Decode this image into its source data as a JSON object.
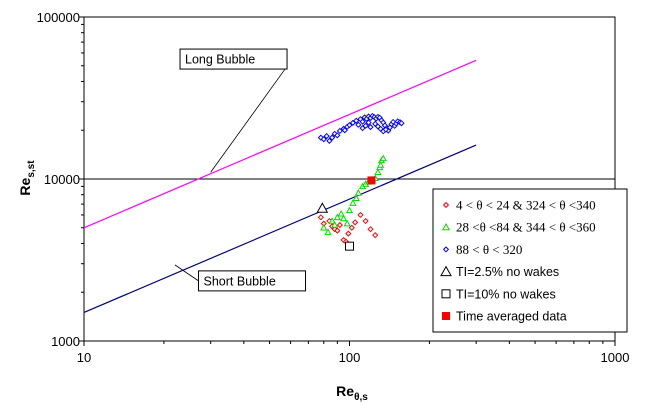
{
  "chart_data": {
    "type": "scatter",
    "xscale": "log",
    "yscale": "log",
    "xlim": [
      10,
      1000
    ],
    "ylim": [
      1000,
      100000
    ],
    "x_ticks": [
      "10",
      "100",
      "1000"
    ],
    "y_ticks": [
      "1000",
      "10000",
      "100000"
    ],
    "xlabel": {
      "main": "Re",
      "sub": "θ,s"
    },
    "ylabel": {
      "main": "Re",
      "sub": "s,st"
    },
    "grid": "horizontal major",
    "legend_position": "right",
    "colors": {
      "long_bubble": "#ff00ff",
      "short_bubble": "#000080",
      "series_red": "#ff0000",
      "series_green": "#00dd00",
      "series_blue": "#0000ff",
      "tl25": "#000000",
      "tl10": "#000000",
      "avg": "#ff0000"
    },
    "lines": [
      {
        "name": "Long Bubble",
        "label": "Long Bubble",
        "color": "#ff00ff",
        "x": [
          10,
          300
        ],
        "y": [
          5000,
          54000
        ],
        "label_at": [
          23,
          55000
        ],
        "leader_to": [
          30,
          11000
        ]
      },
      {
        "name": "Short Bubble",
        "label": "Short Bubble",
        "color": "#000080",
        "x": [
          10,
          300
        ],
        "y": [
          1500,
          16200
        ],
        "label_at": [
          27,
          2350
        ],
        "leader_to": [
          22,
          2950
        ]
      }
    ],
    "series": [
      {
        "name": "4 < θ < 24 & 324 < θ <340",
        "marker": "diamond-open",
        "color": "#ff0000",
        "points": [
          [
            78,
            5800
          ],
          [
            80,
            5300
          ],
          [
            84,
            5500
          ],
          [
            86,
            5100
          ],
          [
            88,
            4900
          ],
          [
            90,
            4800
          ],
          [
            92,
            5200
          ],
          [
            95,
            4200
          ],
          [
            97,
            4100
          ],
          [
            99,
            4600
          ],
          [
            102,
            5000
          ],
          [
            105,
            5400
          ],
          [
            110,
            6000
          ],
          [
            115,
            5500
          ],
          [
            120,
            4900
          ],
          [
            125,
            4500
          ]
        ]
      },
      {
        "name": "28 <θ <84 & 344 < θ <360",
        "marker": "triangle-open",
        "color": "#00dd00",
        "points": [
          [
            80,
            5000
          ],
          [
            83,
            4700
          ],
          [
            86,
            5500
          ],
          [
            88,
            5200
          ],
          [
            90,
            5800
          ],
          [
            93,
            6100
          ],
          [
            95,
            5700
          ],
          [
            98,
            5300
          ],
          [
            100,
            6400
          ],
          [
            103,
            7100
          ],
          [
            106,
            7600
          ],
          [
            108,
            8200
          ],
          [
            112,
            9000
          ],
          [
            115,
            9300
          ],
          [
            118,
            9600
          ],
          [
            122,
            9900
          ],
          [
            125,
            10100
          ],
          [
            128,
            11000
          ],
          [
            130,
            11800
          ],
          [
            132,
            13000
          ],
          [
            134,
            13400
          ],
          [
            131,
            12200
          ]
        ]
      },
      {
        "name": "88 < θ < 320",
        "marker": "diamond-open",
        "color": "#0000ff",
        "points": [
          [
            78,
            18000
          ],
          [
            80,
            17600
          ],
          [
            82,
            18400
          ],
          [
            84,
            17200
          ],
          [
            86,
            18000
          ],
          [
            88,
            19000
          ],
          [
            90,
            18600
          ],
          [
            92,
            19800
          ],
          [
            95,
            20400
          ],
          [
            98,
            21000
          ],
          [
            100,
            21500
          ],
          [
            103,
            22200
          ],
          [
            106,
            22900
          ],
          [
            108,
            21600
          ],
          [
            110,
            23400
          ],
          [
            112,
            22600
          ],
          [
            114,
            24000
          ],
          [
            116,
            23500
          ],
          [
            118,
            24300
          ],
          [
            120,
            23800
          ],
          [
            122,
            24500
          ],
          [
            124,
            24100
          ],
          [
            126,
            23600
          ],
          [
            128,
            24200
          ],
          [
            130,
            23900
          ],
          [
            132,
            23000
          ],
          [
            134,
            22300
          ],
          [
            136,
            21400
          ],
          [
            138,
            20600
          ],
          [
            140,
            19900
          ],
          [
            142,
            20800
          ],
          [
            144,
            21800
          ],
          [
            146,
            22500
          ],
          [
            148,
            21300
          ],
          [
            150,
            22000
          ],
          [
            152,
            22700
          ],
          [
            155,
            22400
          ],
          [
            157,
            22100
          ],
          [
            125,
            21900
          ],
          [
            128,
            21100
          ],
          [
            131,
            20400
          ],
          [
            134,
            19700
          ],
          [
            137,
            20200
          ],
          [
            118,
            22300
          ],
          [
            115,
            21300
          ],
          [
            112,
            20600
          ],
          [
            120,
            20900
          ],
          [
            96,
            20000
          ]
        ]
      },
      {
        "name": "TI=2.5% no wakes",
        "marker": "triangle-open-large",
        "color": "#000000",
        "points": [
          [
            79,
            6600
          ]
        ]
      },
      {
        "name": "TI=10% no wakes",
        "marker": "square-open",
        "color": "#000000",
        "points": [
          [
            100,
            3850
          ]
        ]
      },
      {
        "name": "Time averaged data",
        "marker": "square-filled",
        "color": "#ff0000",
        "points": [
          [
            121,
            9800
          ]
        ]
      }
    ]
  }
}
